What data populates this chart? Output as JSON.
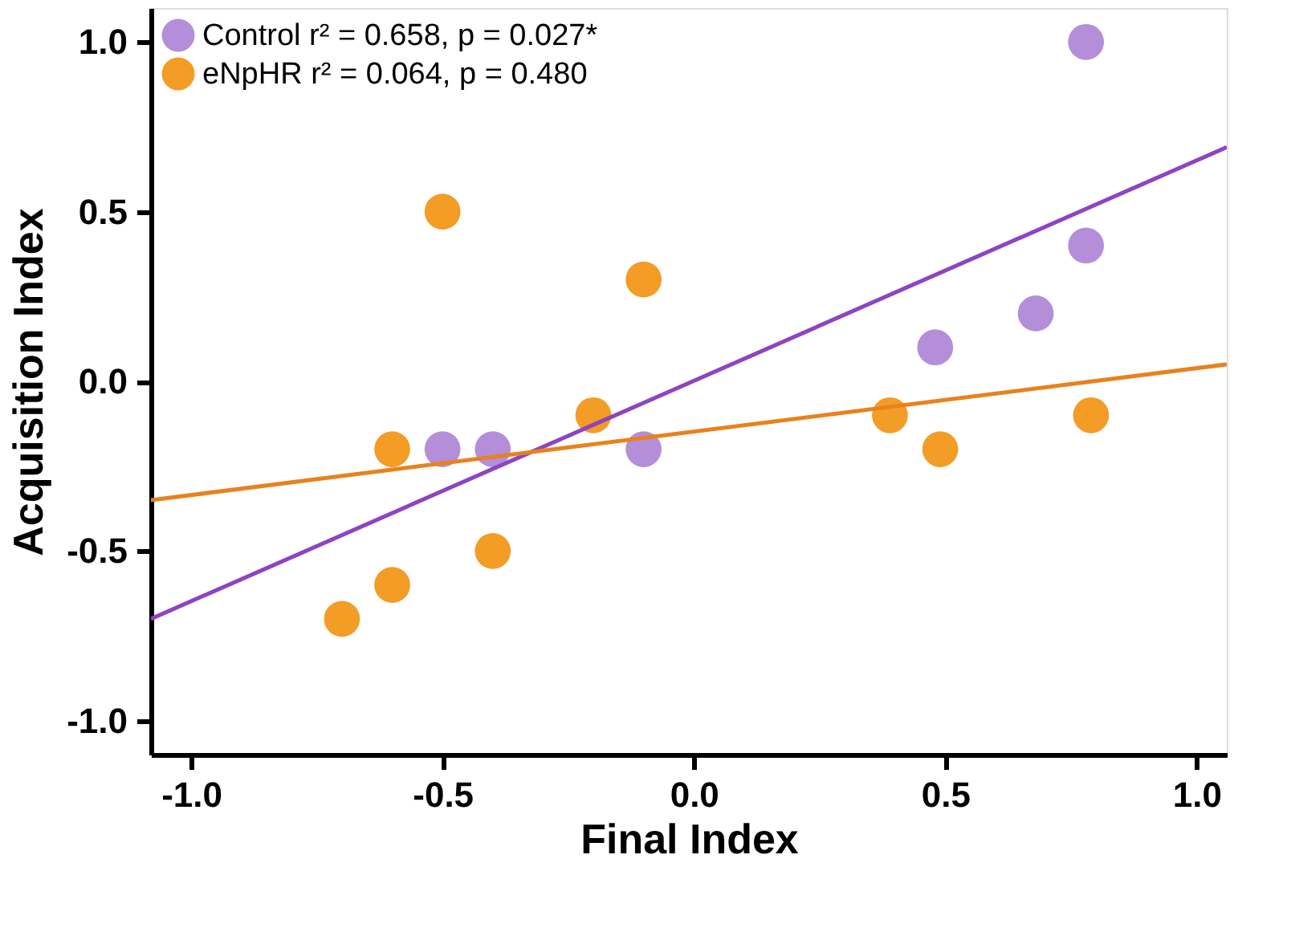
{
  "chart_data": {
    "type": "scatter",
    "xlabel": "Final Index",
    "ylabel": "Acquisition Index",
    "xlim": [
      -1.08,
      1.06
    ],
    "ylim": [
      -1.1,
      1.1
    ],
    "xticks": [
      {
        "value": -1,
        "label": "-1.0"
      },
      -0.5,
      {
        "value": 0,
        "label": "0.0"
      },
      0.5,
      {
        "value": 1,
        "label": "1.0"
      }
    ],
    "yticks": [
      {
        "value": -1,
        "label": "-1.0"
      },
      -0.5,
      {
        "value": 0,
        "label": "0.0"
      },
      0.5,
      {
        "value": 1,
        "label": "1.0"
      }
    ],
    "grid": false,
    "legend": "top left",
    "series": [
      {
        "name": "Control  r² = 0.658, p = 0.027*",
        "color": "#b48ed8",
        "marker": "circle",
        "x": [
          0.78,
          0.78,
          0.68,
          0.48,
          -0.1,
          -0.4,
          -0.5
        ],
        "values": [
          1.0,
          0.4,
          0.2,
          0.1,
          -0.2,
          -0.2,
          -0.2
        ]
      },
      {
        "name": "eNpHR  r² = 0.064, p = 0.480",
        "color": "#f39c26",
        "marker": "circle",
        "x": [
          -0.5,
          -0.1,
          -0.2,
          -0.6,
          -0.4,
          -0.6,
          -0.7,
          0.39,
          0.49,
          0.79
        ],
        "values": [
          0.5,
          0.3,
          -0.1,
          -0.2,
          -0.5,
          -0.6,
          -0.7,
          -0.1,
          -0.2,
          -0.1
        ]
      },
      {
        "type": "line",
        "color": "#8e44c0",
        "marker": "none",
        "x": [
          -1.08,
          1.06
        ],
        "values": [
          -0.7,
          0.69
        ]
      },
      {
        "type": "line",
        "color": "#e8821e",
        "marker": "none",
        "x": [
          -1.08,
          1.06
        ],
        "values": [
          -0.35,
          0.05
        ]
      }
    ]
  }
}
